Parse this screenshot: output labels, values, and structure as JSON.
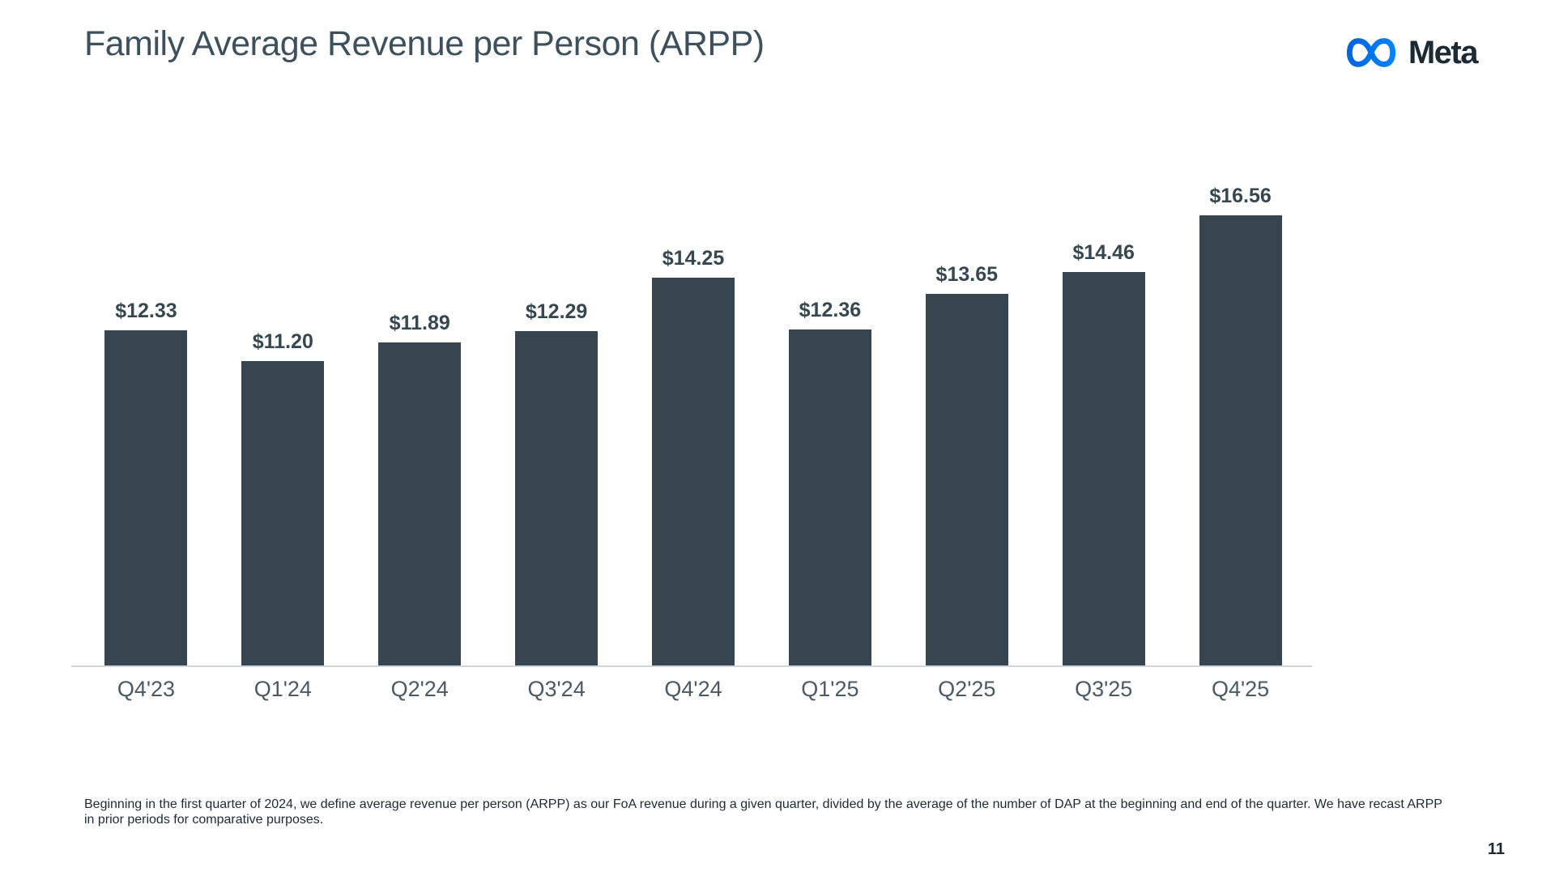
{
  "slide": {
    "title": "Family Average Revenue per Person (ARPP)",
    "page_number": "11",
    "footnote": "Beginning in the first quarter of 2024, we define average revenue per person (ARPP) as our FoA revenue during a given quarter, divided by the average of the number of DAP at the beginning and end of the quarter. We have recast ARPP in prior periods for comparative purposes.",
    "logo": {
      "brand": "Meta",
      "icon": "meta-infinity-icon"
    }
  },
  "colors": {
    "bar": "#36454F",
    "title": "#3E505B",
    "value_label": "#37474F",
    "axis_label": "#4A5963",
    "footnote": "#1C2B33",
    "axis_line": "#D2D5D7",
    "logo_blue_start": "#0064E0",
    "logo_blue_end": "#0082FB",
    "logo_text": "#1C2B33"
  },
  "chart_data": {
    "type": "bar",
    "title": "Family Average Revenue per Person (ARPP)",
    "categories": [
      "Q4'23",
      "Q1'24",
      "Q2'24",
      "Q3'24",
      "Q4'24",
      "Q1'25",
      "Q2'25",
      "Q3'25",
      "Q4'25"
    ],
    "values": [
      12.33,
      11.2,
      11.89,
      12.29,
      14.25,
      12.36,
      13.65,
      14.46,
      16.56
    ],
    "value_labels": [
      "$12.33",
      "$11.20",
      "$11.89",
      "$12.29",
      "$14.25",
      "$12.36",
      "$13.65",
      "$14.46",
      "$16.56"
    ],
    "unit": "USD",
    "xlabel": "",
    "ylabel": "",
    "ylim": [
      0,
      17.5
    ],
    "grid": false,
    "legend": "none",
    "data_labels_position": "above-bar",
    "bar_color": "#36454F"
  }
}
